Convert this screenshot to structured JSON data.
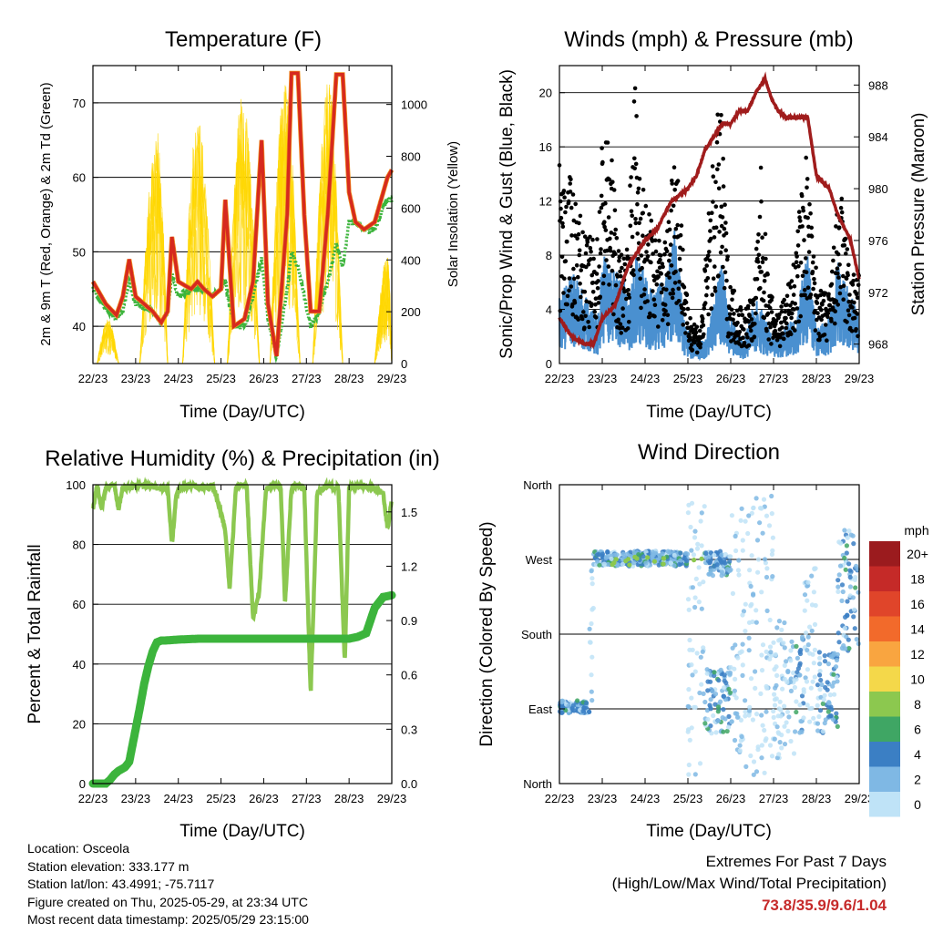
{
  "time_ticks": [
    "22/23",
    "23/23",
    "24/23",
    "25/23",
    "26/23",
    "27/23",
    "28/23",
    "29/23"
  ],
  "time_label": "Time (Day/UTC)",
  "colors": {
    "temp_red": "#d62a1e",
    "temp_orange": "#f08c1e",
    "dewpoint_green": "#3cb43c",
    "solar_yellow": "#ffd700",
    "wind_blue": "#4a90d0",
    "gust_black": "#000000",
    "pressure_maroon": "#a01c1c",
    "rh_green": "#8cc850",
    "precip_green": "#3cb43c"
  },
  "chart_data": [
    {
      "type": "line",
      "title": "Temperature (F)",
      "ylabel": "2m & 9m T (Red, Orange) & 2m Td (Green)",
      "ylabel_right": "Solar Insolation (Yellow)",
      "ylim": [
        35,
        75
      ],
      "yticks": [
        40,
        50,
        60,
        70
      ],
      "ylim_right": [
        0,
        1150
      ],
      "yticks_right": [
        0,
        200,
        400,
        600,
        800,
        1000
      ],
      "x_range": [
        0,
        7
      ],
      "series": [
        {
          "name": "2m T",
          "x": [
            0,
            0.3,
            0.55,
            0.7,
            0.85,
            1.0,
            1.4,
            1.6,
            1.75,
            1.85,
            2.0,
            2.3,
            2.45,
            2.6,
            2.8,
            3.0,
            3.1,
            3.3,
            3.55,
            3.75,
            3.95,
            4.1,
            4.3,
            4.55,
            4.65,
            4.8,
            4.95,
            5.1,
            5.3,
            5.5,
            5.7,
            5.85,
            6.0,
            6.15,
            6.35,
            6.6,
            6.8,
            6.9,
            7.0
          ],
          "y": [
            46,
            43,
            41.5,
            44,
            49,
            44,
            42,
            40.5,
            42,
            52,
            46,
            45,
            46,
            45,
            44,
            45,
            57,
            40,
            41,
            46,
            65,
            43,
            36,
            55,
            74,
            74,
            55,
            42,
            42,
            55,
            73.8,
            73.8,
            58,
            54,
            53,
            54,
            58,
            60,
            61
          ]
        },
        {
          "name": "2m Td",
          "x": [
            0,
            0.3,
            0.55,
            0.7,
            0.85,
            1.0,
            1.4,
            1.6,
            1.75,
            1.85,
            2.0,
            2.3,
            2.45,
            2.6,
            2.8,
            3.0,
            3.1,
            3.3,
            3.55,
            3.75,
            3.95,
            4.1,
            4.3,
            4.55,
            4.65,
            4.8,
            4.95,
            5.1,
            5.3,
            5.5,
            5.7,
            5.85,
            6.0,
            6.15,
            6.35,
            6.6,
            6.8,
            6.9,
            7.0
          ],
          "y": [
            45,
            42.5,
            41,
            42,
            46,
            43,
            42,
            40.5,
            42,
            47,
            44,
            45,
            45,
            45,
            44,
            45,
            46,
            40,
            40,
            44,
            49,
            41,
            35.9,
            45,
            50,
            48,
            44,
            40,
            42,
            46,
            51,
            48,
            54,
            54,
            53,
            53,
            56,
            57,
            57
          ]
        },
        {
          "name": "Solar",
          "peaks": [
            [
              0.1,
              0.35,
              0.6,
              170
            ],
            [
              1.1,
              1.5,
              1.75,
              900
            ],
            [
              2.1,
              2.45,
              2.85,
              950
            ],
            [
              3.15,
              3.5,
              3.9,
              1050
            ],
            [
              4.15,
              4.5,
              4.85,
              1100
            ],
            [
              5.15,
              5.5,
              5.85,
              1100
            ],
            [
              6.6,
              6.9,
              7.0,
              420
            ]
          ]
        }
      ]
    },
    {
      "type": "scatter",
      "title": "Winds (mph) & Pressure (mb)",
      "ylabel": "Sonic/Prop Wind & Gust (Blue, Black)",
      "ylabel_right": "Station Pressure (Maroon)",
      "ylim": [
        0,
        22
      ],
      "yticks": [
        0,
        4,
        8,
        12,
        16,
        20
      ],
      "ylim_right": [
        966.5,
        989.5
      ],
      "yticks_right": [
        968,
        972,
        976,
        980,
        984,
        988
      ],
      "x_range": [
        0,
        7
      ],
      "series": [
        {
          "name": "Pressure",
          "x": [
            0,
            0.3,
            0.6,
            0.8,
            1.0,
            1.3,
            1.6,
            2.0,
            2.3,
            2.6,
            3.0,
            3.2,
            3.4,
            3.6,
            3.8,
            4.0,
            4.2,
            4.4,
            4.6,
            4.8,
            4.95,
            5.1,
            5.3,
            5.5,
            5.8,
            6.0,
            6.3,
            6.5,
            6.8,
            7.0
          ],
          "y": [
            970,
            968.5,
            968,
            968,
            970,
            971,
            974,
            976,
            977,
            979,
            980,
            981,
            983,
            984,
            985,
            985,
            986,
            986,
            987.5,
            988.5,
            987,
            986,
            985.5,
            985.5,
            985.5,
            981,
            980,
            978,
            976,
            973
          ]
        },
        {
          "name": "Wind",
          "profile": [
            [
              0,
              3
            ],
            [
              0.3,
              4
            ],
            [
              0.6,
              3
            ],
            [
              0.9,
              2
            ],
            [
              1.0,
              5
            ],
            [
              1.3,
              4
            ],
            [
              1.5,
              4
            ],
            [
              1.6,
              2.5
            ],
            [
              1.8,
              5
            ],
            [
              2.0,
              4
            ],
            [
              2.2,
              3
            ],
            [
              2.5,
              4
            ],
            [
              2.7,
              6
            ],
            [
              2.9,
              2
            ],
            [
              3.1,
              1
            ],
            [
              3.4,
              1
            ],
            [
              3.8,
              4.5
            ],
            [
              4.0,
              2
            ],
            [
              4.3,
              1
            ],
            [
              4.6,
              3
            ],
            [
              4.8,
              2
            ],
            [
              5.0,
              1
            ],
            [
              5.2,
              1.5
            ],
            [
              5.5,
              2
            ],
            [
              5.8,
              5
            ],
            [
              6.0,
              1.5
            ],
            [
              6.3,
              2
            ],
            [
              6.5,
              4.5
            ],
            [
              6.8,
              3
            ],
            [
              7.0,
              2
            ]
          ]
        },
        {
          "name": "Gust",
          "profile": [
            [
              0,
              11
            ],
            [
              0.3,
              10
            ],
            [
              0.6,
              7
            ],
            [
              0.9,
              7
            ],
            [
              1.0,
              13
            ],
            [
              1.2,
              12
            ],
            [
              1.4,
              6
            ],
            [
              1.6,
              7
            ],
            [
              1.75,
              16
            ],
            [
              2.0,
              9
            ],
            [
              2.3,
              7
            ],
            [
              2.5,
              7
            ],
            [
              2.7,
              14
            ],
            [
              2.85,
              8
            ],
            [
              3.0,
              3
            ],
            [
              3.3,
              2
            ],
            [
              3.5,
              9
            ],
            [
              3.75,
              15
            ],
            [
              3.95,
              5
            ],
            [
              4.1,
              4
            ],
            [
              4.3,
              3
            ],
            [
              4.55,
              4
            ],
            [
              4.7,
              11
            ],
            [
              4.9,
              4
            ],
            [
              5.1,
              3
            ],
            [
              5.3,
              4
            ],
            [
              5.5,
              6
            ],
            [
              5.75,
              12
            ],
            [
              5.95,
              6
            ],
            [
              6.1,
              4
            ],
            [
              6.3,
              4
            ],
            [
              6.55,
              10
            ],
            [
              6.8,
              5
            ],
            [
              7.0,
              5
            ]
          ]
        }
      ]
    },
    {
      "type": "line",
      "title": "Relative Humidity (%) & Precipitation (in)",
      "ylabel": "Percent & Total Rainfall",
      "ylim": [
        0,
        100
      ],
      "yticks": [
        0,
        20,
        40,
        60,
        80,
        100
      ],
      "ylim_right": [
        0,
        1.65
      ],
      "yticks_right": [
        "0.0",
        "0.3",
        "0.6",
        "0.9",
        "1.2",
        "1.5"
      ],
      "yticks_right_values": [
        0,
        0.3,
        0.6,
        0.9,
        1.2,
        1.5
      ],
      "x_range": [
        0,
        7
      ],
      "series": [
        {
          "name": "RH",
          "x": [
            0,
            0.1,
            0.2,
            0.3,
            0.5,
            0.6,
            0.7,
            0.9,
            1.0,
            1.2,
            1.5,
            1.75,
            1.85,
            1.95,
            2.05,
            2.3,
            2.6,
            2.8,
            2.95,
            3.1,
            3.2,
            3.35,
            3.45,
            3.6,
            3.75,
            3.9,
            4.05,
            4.25,
            4.4,
            4.5,
            4.65,
            4.8,
            4.95,
            5.1,
            5.25,
            5.4,
            5.5,
            5.65,
            5.75,
            5.9,
            6.0,
            6.3,
            6.6,
            6.8,
            6.9,
            7.0
          ],
          "y": [
            92,
            100,
            92,
            99,
            100,
            92,
            99,
            99,
            100,
            100,
            99,
            99,
            80,
            96,
            99,
            100,
            99,
            100,
            93,
            85,
            65,
            99,
            100,
            100,
            55,
            65,
            98,
            100,
            99,
            60,
            99,
            100,
            99,
            30,
            97,
            99,
            100,
            99,
            99,
            40,
            99,
            100,
            99,
            97,
            85,
            95
          ]
        },
        {
          "name": "Total Rainfall",
          "x": [
            0,
            0.3,
            0.4,
            0.5,
            0.6,
            0.75,
            0.85,
            1.0,
            1.1,
            1.2,
            1.3,
            1.4,
            1.5,
            1.6,
            1.7,
            2.0,
            2.5,
            3.0,
            3.5,
            4.0,
            5.0,
            6.0,
            6.2,
            6.4,
            6.5,
            6.6,
            6.7,
            6.8,
            7.0
          ],
          "y": [
            0,
            0,
            0.02,
            0.05,
            0.07,
            0.09,
            0.12,
            0.3,
            0.42,
            0.55,
            0.65,
            0.73,
            0.78,
            0.79,
            0.79,
            0.795,
            0.8,
            0.8,
            0.8,
            0.8,
            0.8,
            0.8,
            0.81,
            0.83,
            0.9,
            0.97,
            1.0,
            1.03,
            1.04
          ]
        }
      ]
    },
    {
      "type": "scatter",
      "title": "Wind Direction",
      "ylabel": "Direction (Colored By Speed)",
      "ylim": [
        0,
        360
      ],
      "yticks": [
        "North",
        "East",
        "South",
        "West",
        "North"
      ],
      "yticks_values": [
        0,
        90,
        180,
        270,
        360
      ],
      "x_range": [
        0,
        7
      ],
      "legend_title": "mph",
      "legend_labels": [
        "20+",
        "18",
        "16",
        "14",
        "12",
        "10",
        "8",
        "6",
        "4",
        "2",
        "0"
      ],
      "legend_colors": [
        "#9b1b1e",
        "#c52a28",
        "#e0452a",
        "#f26a2b",
        "#f9a540",
        "#f4d84a",
        "#8cc84f",
        "#3fa664",
        "#3b7fc4",
        "#7fb8e4",
        "#bfe3f7"
      ],
      "clusters": [
        [
          0,
          0.7,
          85,
          100
        ],
        [
          0.7,
          0.8,
          100,
          260
        ],
        [
          0.8,
          3.0,
          262,
          280
        ],
        [
          3.0,
          3.4,
          10,
          340
        ],
        [
          3.4,
          4.0,
          250,
          280
        ],
        [
          3.4,
          4.0,
          60,
          140
        ],
        [
          4.0,
          4.5,
          20,
          340
        ],
        [
          4.5,
          5.0,
          10,
          350
        ],
        [
          5.0,
          5.5,
          30,
          200
        ],
        [
          5.5,
          5.7,
          60,
          180
        ],
        [
          5.7,
          6.0,
          70,
          260
        ],
        [
          6.0,
          6.5,
          60,
          160
        ],
        [
          6.5,
          7.0,
          160,
          310
        ]
      ]
    }
  ],
  "info": {
    "location": "Location: Osceola",
    "elevation": "Station elevation: 333.177 m",
    "latlon": "Station lat/lon: 43.4991; -75.7117",
    "created": "Figure created on Thu, 2025-05-29, at 23:34 UTC",
    "recent": "Most recent data timestamp: 2025/05/29 23:15:00"
  },
  "extremes": {
    "title": "Extremes For Past 7 Days",
    "subtitle": "(High/Low/Max Wind/Total Precipitation)",
    "values": "73.8/35.9/9.6/1.04"
  }
}
